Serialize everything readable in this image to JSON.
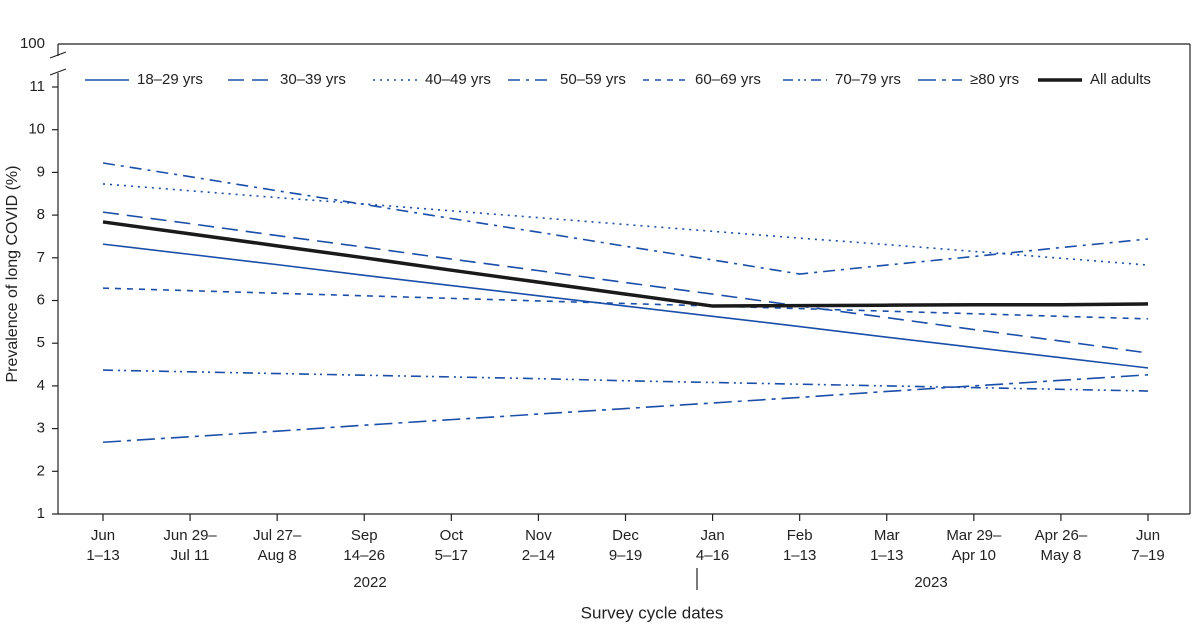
{
  "chart_data": {
    "type": "line",
    "y_label": "Prevalence of long COVID (%)",
    "x_label": "Survey cycle dates",
    "categories": [
      [
        "Jun",
        "1–13"
      ],
      [
        "Jun 29–",
        "Jul 11"
      ],
      [
        "Jul 27–",
        "Aug 8"
      ],
      [
        "Sep",
        "14–26"
      ],
      [
        "Oct",
        "5–17"
      ],
      [
        "Nov",
        "2–14"
      ],
      [
        "Dec",
        "9–19"
      ],
      [
        "Jan",
        "4–16"
      ],
      [
        "Feb",
        "1–13"
      ],
      [
        "Mar",
        "1–13"
      ],
      [
        "Mar 29–",
        "Apr 10"
      ],
      [
        "Apr 26–",
        "May 8"
      ],
      [
        "Jun",
        "7–19"
      ]
    ],
    "year_labels": [
      "2022",
      "2023"
    ],
    "ylim": [
      1,
      11
    ],
    "yticks": [
      1,
      2,
      3,
      4,
      5,
      6,
      7,
      8,
      9,
      10,
      11
    ],
    "y_break_tick": 100,
    "legend": "top",
    "series": [
      {
        "name": "18–29 yrs",
        "color": "#1a4ea8",
        "style": "solid",
        "linewidth": 1.6,
        "values": [
          7.32,
          7.08,
          6.84,
          6.59,
          6.35,
          6.11,
          5.87,
          5.63,
          5.39,
          5.14,
          4.9,
          4.66,
          4.42
        ]
      },
      {
        "name": "30–39 yrs",
        "color": "#1a4ea8",
        "style": "longdash",
        "linewidth": 1.6,
        "values": [
          8.07,
          7.8,
          7.52,
          7.25,
          6.97,
          6.7,
          6.42,
          6.15,
          5.87,
          5.6,
          5.32,
          5.05,
          4.77
        ]
      },
      {
        "name": "40–49 yrs",
        "color": "#1a4ea8",
        "style": "dotted",
        "linewidth": 1.6,
        "values": [
          8.73,
          8.57,
          8.41,
          8.26,
          8.1,
          7.94,
          7.78,
          7.62,
          7.46,
          7.31,
          7.15,
          6.99,
          6.83
        ]
      },
      {
        "name": "50–59 yrs",
        "color": "#1a4ea8",
        "style": "dashdot",
        "linewidth": 1.6,
        "values": [
          9.22,
          8.9,
          8.57,
          8.25,
          7.92,
          7.6,
          7.27,
          6.95,
          6.62,
          6.83,
          7.03,
          7.24,
          7.44
        ]
      },
      {
        "name": "60–69 yrs",
        "color": "#1a4ea8",
        "style": "dashed",
        "linewidth": 1.6,
        "values": [
          6.29,
          6.23,
          6.17,
          6.11,
          6.05,
          5.99,
          5.93,
          5.87,
          5.81,
          5.75,
          5.69,
          5.63,
          5.57
        ]
      },
      {
        "name": "70–79 yrs",
        "color": "#1a4ea8",
        "style": "dashdotdot",
        "linewidth": 1.6,
        "values": [
          4.37,
          4.33,
          4.29,
          4.25,
          4.21,
          4.17,
          4.12,
          4.08,
          4.04,
          4.0,
          3.96,
          3.92,
          3.88
        ]
      },
      {
        "name": "≥80 yrs",
        "color": "#1a4ea8",
        "style": "longdashdot",
        "linewidth": 1.6,
        "values": [
          2.68,
          2.81,
          2.94,
          3.08,
          3.21,
          3.34,
          3.47,
          3.6,
          3.73,
          3.87,
          4.0,
          4.13,
          4.26
        ]
      },
      {
        "name": "All adults",
        "color": "#1a1a1a",
        "style": "solid",
        "linewidth": 3.5,
        "values": [
          7.84,
          7.56,
          7.28,
          7.0,
          6.71,
          6.43,
          6.15,
          5.87,
          5.88,
          5.89,
          5.9,
          5.9,
          5.92
        ]
      }
    ]
  }
}
